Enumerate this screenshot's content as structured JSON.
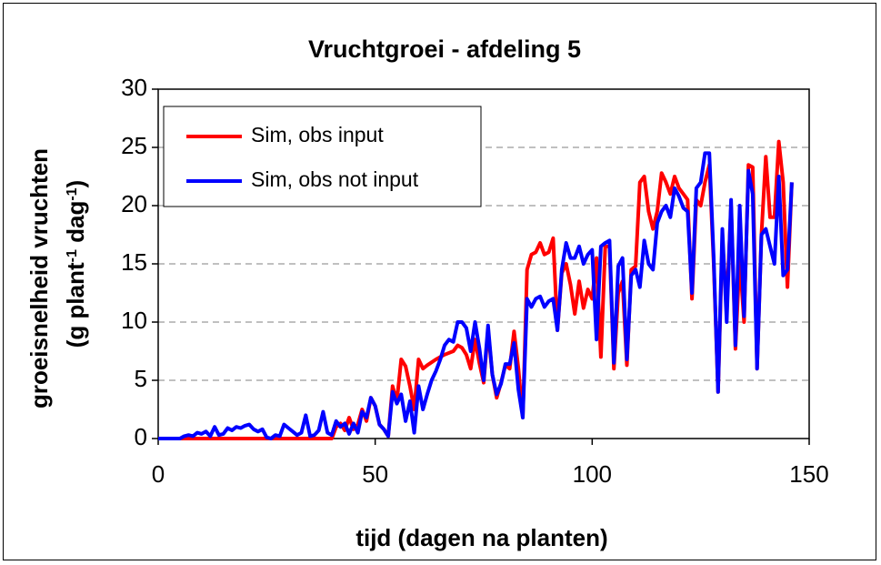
{
  "chart_data": {
    "type": "line",
    "title": "Vruchtgroei - afdeling 5",
    "xlabel": "tijd (dagen na planten)",
    "ylabel_line1": "groeisnelheid vruchten",
    "ylabel_line2_parts": [
      "(g plant",
      "-1",
      " dag",
      "-1",
      ")"
    ],
    "xlim": [
      0,
      150
    ],
    "ylim": [
      0,
      30
    ],
    "xticks": [
      "0",
      "50",
      "100",
      "150"
    ],
    "yticks": [
      "0",
      "5",
      "10",
      "15",
      "20",
      "25",
      "30"
    ],
    "grid": "horizontal dashed",
    "legend_position": "top-left",
    "series": [
      {
        "name": "Sim, obs input",
        "color": "#ff0000",
        "points": [
          [
            0,
            0
          ],
          [
            8,
            0
          ],
          [
            20,
            0
          ],
          [
            30,
            0
          ],
          [
            40,
            0
          ],
          [
            41,
            1.0
          ],
          [
            42,
            1.3
          ],
          [
            43,
            0.7
          ],
          [
            44,
            1.8
          ],
          [
            45,
            0.8
          ],
          [
            46,
            1.2
          ],
          [
            47,
            2.5
          ],
          [
            48,
            1.5
          ],
          [
            49,
            3.5
          ],
          [
            50,
            2.8
          ],
          [
            51,
            1.2
          ],
          [
            52,
            0.8
          ],
          [
            53,
            0.2
          ],
          [
            54,
            4.5
          ],
          [
            55,
            3.2
          ],
          [
            56,
            6.8
          ],
          [
            57,
            6.2
          ],
          [
            58,
            4.5
          ],
          [
            59,
            2.5
          ],
          [
            60,
            6.8
          ],
          [
            61,
            6.0
          ],
          [
            62,
            6.3
          ],
          [
            64,
            6.8
          ],
          [
            66,
            7.2
          ],
          [
            68,
            7.5
          ],
          [
            69,
            8.0
          ],
          [
            70,
            7.8
          ],
          [
            71,
            7.2
          ],
          [
            72,
            6.0
          ],
          [
            73,
            8.5
          ],
          [
            74,
            6.5
          ],
          [
            75,
            4.8
          ],
          [
            76,
            9.3
          ],
          [
            77,
            5.5
          ],
          [
            78,
            3.5
          ],
          [
            79,
            4.8
          ],
          [
            80,
            6.3
          ],
          [
            81,
            6.0
          ],
          [
            82,
            9.2
          ],
          [
            83,
            6.0
          ],
          [
            84,
            1.8
          ],
          [
            85,
            14.5
          ],
          [
            86,
            15.8
          ],
          [
            87,
            16.0
          ],
          [
            88,
            16.8
          ],
          [
            89,
            15.8
          ],
          [
            90,
            16.0
          ],
          [
            91,
            17.2
          ],
          [
            92,
            9.3
          ],
          [
            93,
            14.2
          ],
          [
            94,
            15.0
          ],
          [
            95,
            13.2
          ],
          [
            96,
            10.7
          ],
          [
            97,
            13.5
          ],
          [
            98,
            11.2
          ],
          [
            99,
            12.8
          ],
          [
            100,
            12.0
          ],
          [
            101,
            15.5
          ],
          [
            102,
            7.0
          ],
          [
            103,
            16.5
          ],
          [
            104,
            16.5
          ],
          [
            105,
            6.0
          ],
          [
            106,
            12.5
          ],
          [
            107,
            13.5
          ],
          [
            108,
            6.3
          ],
          [
            109,
            14.5
          ],
          [
            110,
            14.8
          ],
          [
            111,
            22.0
          ],
          [
            112,
            22.5
          ],
          [
            113,
            19.5
          ],
          [
            114,
            18.0
          ],
          [
            115,
            19.5
          ],
          [
            116,
            22.8
          ],
          [
            117,
            22.0
          ],
          [
            118,
            21.0
          ],
          [
            119,
            22.5
          ],
          [
            120,
            21.5
          ],
          [
            121,
            21.0
          ],
          [
            122,
            20.5
          ],
          [
            123,
            12.0
          ],
          [
            124,
            20.5
          ],
          [
            125,
            20.0
          ],
          [
            126,
            22.0
          ],
          [
            127,
            23.5
          ],
          [
            128,
            15.0
          ],
          [
            129,
            4.0
          ],
          [
            130,
            17.0
          ],
          [
            131,
            11.5
          ],
          [
            132,
            20.0
          ],
          [
            133,
            7.7
          ],
          [
            134,
            15.5
          ],
          [
            135,
            10.0
          ],
          [
            136,
            23.5
          ],
          [
            137,
            23.3
          ],
          [
            138,
            6.0
          ],
          [
            139,
            17.5
          ],
          [
            140,
            24.2
          ],
          [
            141,
            19.0
          ],
          [
            142,
            19.0
          ],
          [
            143,
            25.5
          ],
          [
            144,
            22.0
          ],
          [
            145,
            13.0
          ],
          [
            146,
            22.0
          ]
        ]
      },
      {
        "name": "Sim, obs not input",
        "color": "#0000ff",
        "points": [
          [
            0,
            0
          ],
          [
            5,
            0
          ],
          [
            6,
            0.2
          ],
          [
            7,
            0.3
          ],
          [
            8,
            0.2
          ],
          [
            9,
            0.5
          ],
          [
            10,
            0.4
          ],
          [
            11,
            0.6
          ],
          [
            12,
            0.2
          ],
          [
            13,
            1.0
          ],
          [
            14,
            0.3
          ],
          [
            15,
            0.4
          ],
          [
            16,
            0.9
          ],
          [
            17,
            0.7
          ],
          [
            18,
            1.0
          ],
          [
            19,
            0.9
          ],
          [
            20,
            1.1
          ],
          [
            21,
            1.2
          ],
          [
            22,
            0.8
          ],
          [
            23,
            0.6
          ],
          [
            24,
            0.8
          ],
          [
            25,
            0.1
          ],
          [
            26,
            0
          ],
          [
            27,
            0.3
          ],
          [
            28,
            0.2
          ],
          [
            29,
            1.2
          ],
          [
            30,
            0.9
          ],
          [
            31,
            0.6
          ],
          [
            32,
            0.3
          ],
          [
            33,
            0.5
          ],
          [
            34,
            2.0
          ],
          [
            35,
            0.2
          ],
          [
            36,
            0.3
          ],
          [
            37,
            0.7
          ],
          [
            38,
            2.3
          ],
          [
            39,
            0.5
          ],
          [
            40,
            0.3
          ],
          [
            41,
            1.5
          ],
          [
            42,
            1.0
          ],
          [
            43,
            1.3
          ],
          [
            44,
            0.4
          ],
          [
            45,
            1.3
          ],
          [
            46,
            0.5
          ],
          [
            47,
            2.3
          ],
          [
            48,
            1.8
          ],
          [
            49,
            3.5
          ],
          [
            50,
            2.8
          ],
          [
            51,
            1.2
          ],
          [
            52,
            0.8
          ],
          [
            53,
            0.2
          ],
          [
            54,
            4.0
          ],
          [
            55,
            3.0
          ],
          [
            56,
            3.8
          ],
          [
            57,
            1.5
          ],
          [
            58,
            3.2
          ],
          [
            59,
            0.5
          ],
          [
            60,
            4.5
          ],
          [
            61,
            2.5
          ],
          [
            62,
            3.8
          ],
          [
            63,
            5.0
          ],
          [
            64,
            5.8
          ],
          [
            65,
            6.8
          ],
          [
            66,
            8.0
          ],
          [
            67,
            8.5
          ],
          [
            68,
            8.3
          ],
          [
            69,
            10.0
          ],
          [
            70,
            10.0
          ],
          [
            71,
            9.5
          ],
          [
            72,
            7.5
          ],
          [
            73,
            10.0
          ],
          [
            74,
            7.8
          ],
          [
            75,
            5.0
          ],
          [
            76,
            9.7
          ],
          [
            77,
            5.5
          ],
          [
            78,
            3.8
          ],
          [
            79,
            4.7
          ],
          [
            80,
            6.4
          ],
          [
            81,
            6.4
          ],
          [
            82,
            8.2
          ],
          [
            83,
            4.2
          ],
          [
            84,
            1.8
          ],
          [
            85,
            12.0
          ],
          [
            86,
            11.3
          ],
          [
            87,
            12.0
          ],
          [
            88,
            12.2
          ],
          [
            89,
            11.3
          ],
          [
            90,
            11.8
          ],
          [
            91,
            12.0
          ],
          [
            92,
            9.3
          ],
          [
            93,
            14.5
          ],
          [
            94,
            16.8
          ],
          [
            95,
            15.5
          ],
          [
            96,
            15.5
          ],
          [
            97,
            16.5
          ],
          [
            98,
            15.0
          ],
          [
            99,
            15.8
          ],
          [
            100,
            16.2
          ],
          [
            101,
            8.5
          ],
          [
            102,
            16.5
          ],
          [
            103,
            16.8
          ],
          [
            104,
            17.0
          ],
          [
            105,
            6.5
          ],
          [
            106,
            14.8
          ],
          [
            107,
            15.5
          ],
          [
            108,
            6.8
          ],
          [
            109,
            14.0
          ],
          [
            110,
            14.5
          ],
          [
            111,
            13.0
          ],
          [
            112,
            17.0
          ],
          [
            113,
            15.0
          ],
          [
            114,
            14.5
          ],
          [
            115,
            18.5
          ],
          [
            116,
            19.5
          ],
          [
            117,
            20.0
          ],
          [
            118,
            19.0
          ],
          [
            119,
            21.5
          ],
          [
            120,
            20.8
          ],
          [
            121,
            19.8
          ],
          [
            122,
            19.5
          ],
          [
            123,
            12.5
          ],
          [
            124,
            21.5
          ],
          [
            125,
            22.0
          ],
          [
            126,
            24.5
          ],
          [
            127,
            24.5
          ],
          [
            128,
            15.5
          ],
          [
            129,
            4.0
          ],
          [
            130,
            18.0
          ],
          [
            131,
            10.0
          ],
          [
            132,
            20.5
          ],
          [
            133,
            8.0
          ],
          [
            134,
            20.0
          ],
          [
            135,
            10.5
          ],
          [
            136,
            23.0
          ],
          [
            137,
            21.0
          ],
          [
            138,
            6.0
          ],
          [
            139,
            17.5
          ],
          [
            140,
            18.0
          ],
          [
            141,
            16.5
          ],
          [
            142,
            15.0
          ],
          [
            143,
            22.5
          ],
          [
            144,
            14.0
          ],
          [
            145,
            14.5
          ],
          [
            146,
            22.0
          ]
        ]
      }
    ]
  }
}
